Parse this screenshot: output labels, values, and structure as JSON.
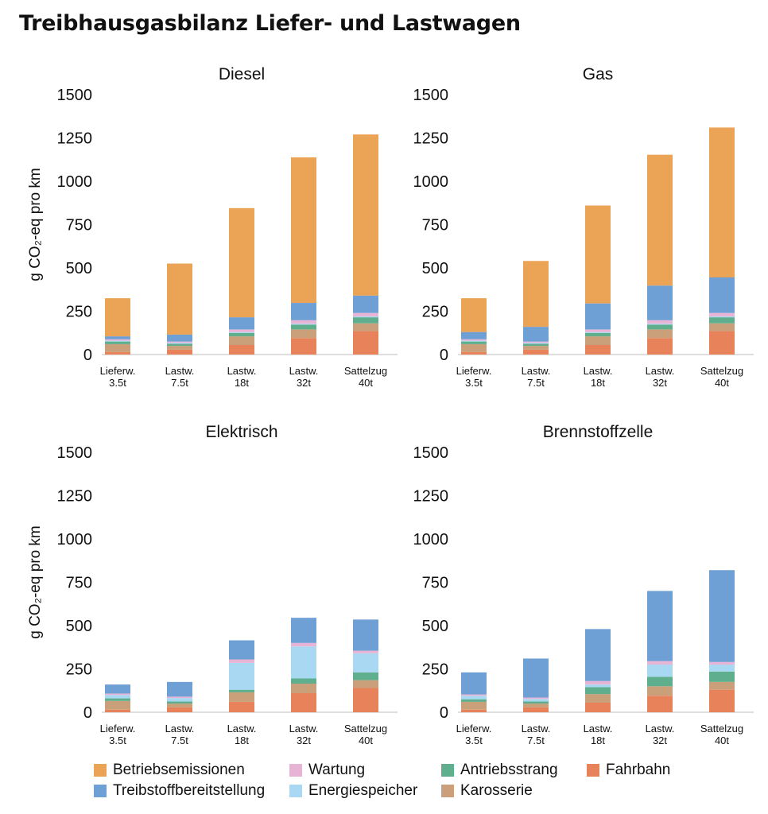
{
  "title": "Treibhausgasbilanz Liefer- und Lastwagen",
  "chart_data": {
    "type": "bar",
    "stacked": true,
    "ylabel": "g CO₂-eq pro km",
    "ylim": [
      0,
      1500
    ],
    "yticks": [
      0,
      250,
      500,
      750,
      1000,
      1250,
      1500
    ],
    "grid": false,
    "legend_position": "bottom",
    "categories": [
      [
        "Lieferw.",
        "3.5t"
      ],
      [
        "Lastw.",
        "7.5t"
      ],
      [
        "Lastw.",
        "18t"
      ],
      [
        "Lastw.",
        "32t"
      ],
      [
        "Sattelzug",
        "40t"
      ]
    ],
    "components": [
      {
        "key": "fahrbahn",
        "name": "Fahrbahn",
        "color": "#E8825A"
      },
      {
        "key": "karosserie",
        "name": "Karosserie",
        "color": "#C9A07A"
      },
      {
        "key": "antriebsstrang",
        "name": "Antriebsstrang",
        "color": "#5FAF8E"
      },
      {
        "key": "energiespeicher",
        "name": "Energiespeicher",
        "color": "#A9D8F2"
      },
      {
        "key": "wartung",
        "name": "Wartung",
        "color": "#E8B4D6"
      },
      {
        "key": "treibstoffbereitstellung",
        "name": "Treibstoffbereitstellung",
        "color": "#6E9FD5"
      },
      {
        "key": "betriebsemissionen",
        "name": "Betriebsemissionen",
        "color": "#EBA356"
      }
    ],
    "charts": [
      {
        "subtitle": "Diesel",
        "series": {
          "fahrbahn": [
            15,
            28,
            55,
            95,
            135
          ],
          "karosserie": [
            45,
            22,
            50,
            50,
            45
          ],
          "antriebsstrang": [
            15,
            12,
            20,
            28,
            35
          ],
          "energiespeicher": [
            5,
            5,
            5,
            5,
            5
          ],
          "wartung": [
            8,
            8,
            15,
            20,
            20
          ],
          "treibstoffbereitstellung": [
            17,
            40,
            70,
            100,
            100
          ],
          "betriebsemissionen": [
            220,
            410,
            630,
            840,
            930
          ]
        }
      },
      {
        "subtitle": "Gas",
        "series": {
          "fahrbahn": [
            15,
            28,
            55,
            95,
            135
          ],
          "karosserie": [
            45,
            22,
            50,
            50,
            45
          ],
          "antriebsstrang": [
            15,
            12,
            20,
            28,
            35
          ],
          "energiespeicher": [
            5,
            5,
            5,
            5,
            5
          ],
          "wartung": [
            8,
            8,
            15,
            20,
            20
          ],
          "treibstoffbereitstellung": [
            42,
            85,
            150,
            200,
            205
          ],
          "betriebsemissionen": [
            195,
            380,
            565,
            755,
            865
          ]
        }
      },
      {
        "subtitle": "Elektrisch",
        "series": {
          "fahrbahn": [
            15,
            28,
            60,
            110,
            140
          ],
          "karosserie": [
            50,
            22,
            55,
            55,
            45
          ],
          "antriebsstrang": [
            15,
            12,
            15,
            30,
            45
          ],
          "energiespeicher": [
            20,
            20,
            155,
            185,
            110
          ],
          "wartung": [
            8,
            8,
            20,
            20,
            15
          ],
          "treibstoffbereitstellung": [
            52,
            85,
            110,
            145,
            180
          ],
          "betriebsemissionen": [
            0,
            0,
            0,
            0,
            0
          ]
        }
      },
      {
        "subtitle": "Brennstoffzelle",
        "series": {
          "fahrbahn": [
            15,
            28,
            55,
            95,
            130
          ],
          "karosserie": [
            45,
            22,
            50,
            55,
            45
          ],
          "antriebsstrang": [
            15,
            12,
            40,
            55,
            60
          ],
          "energiespeicher": [
            20,
            15,
            15,
            70,
            40
          ],
          "wartung": [
            8,
            8,
            20,
            20,
            15
          ],
          "treibstoffbereitstellung": [
            127,
            225,
            300,
            405,
            530
          ],
          "betriebsemissionen": [
            0,
            0,
            0,
            0,
            0
          ]
        }
      }
    ]
  },
  "legend": [
    {
      "key": "betriebsemissionen",
      "label": "Betriebsemissionen"
    },
    {
      "key": "wartung",
      "label": "Wartung"
    },
    {
      "key": "antriebsstrang",
      "label": "Antriebsstrang"
    },
    {
      "key": "fahrbahn",
      "label": "Fahrbahn"
    },
    {
      "key": "treibstoffbereitstellung",
      "label": "Treibstoffbereitstellung"
    },
    {
      "key": "energiespeicher",
      "label": "Energiespeicher"
    },
    {
      "key": "karosserie",
      "label": "Karosserie"
    }
  ]
}
